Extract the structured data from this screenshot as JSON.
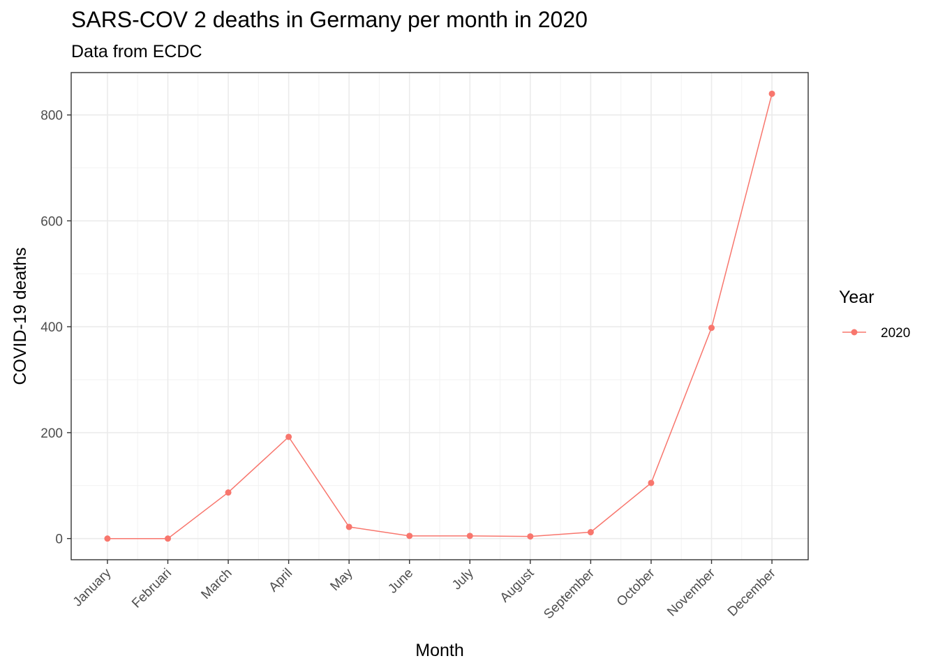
{
  "chart_data": {
    "type": "line",
    "title": "SARS-COV 2 deaths in Germany per month in 2020",
    "subtitle": "Data from ECDC",
    "xlabel": "Month",
    "ylabel": "COVID-19 deaths",
    "categories": [
      "January",
      "Februari",
      "March",
      "April",
      "May",
      "June",
      "July",
      "August",
      "September",
      "October",
      "November",
      "December"
    ],
    "series": [
      {
        "name": "2020",
        "color": "#F8766D",
        "values": [
          0,
          0,
          87,
          192,
          22,
          5,
          5,
          4,
          12,
          105,
          398,
          840
        ]
      }
    ],
    "ylim": [
      -40,
      880
    ],
    "yticks": [
      0,
      200,
      400,
      600,
      800
    ],
    "grid": true,
    "legend": {
      "title": "Year",
      "position": "right"
    }
  }
}
